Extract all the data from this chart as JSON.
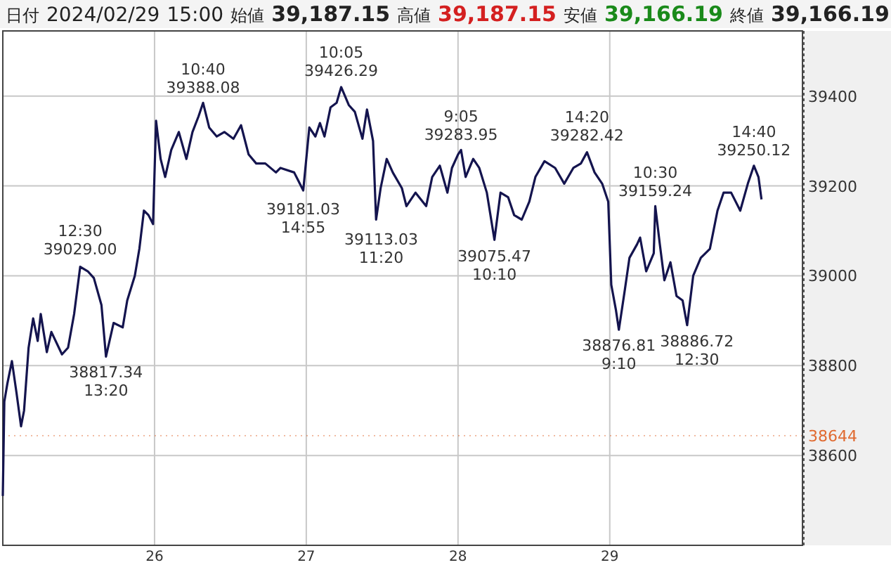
{
  "chart_data": {
    "type": "line",
    "title": "日付 2024/02/29 15:00 始値 39,187.15 高値 39,187.15 安値 39,166.19 終値 39,166.19",
    "x": [
      25.0,
      25.01,
      25.03,
      25.06,
      25.09,
      25.12,
      25.14,
      25.17,
      25.2,
      25.23,
      25.25,
      25.29,
      25.32,
      25.39,
      25.43,
      25.47,
      25.51,
      25.56,
      25.6,
      25.65,
      25.68,
      25.73,
      25.79,
      25.82,
      25.87,
      25.9,
      25.93,
      25.96,
      25.99,
      26.01,
      26.04,
      26.07,
      26.11,
      26.16,
      26.21,
      26.25,
      26.29,
      26.32,
      26.36,
      26.41,
      26.46,
      26.52,
      26.57,
      26.62,
      26.67,
      26.73,
      26.8,
      26.83,
      26.92,
      26.98,
      27.02,
      27.06,
      27.09,
      27.12,
      27.16,
      27.2,
      27.23,
      27.28,
      27.32,
      27.37,
      27.4,
      27.44,
      27.46,
      27.49,
      27.53,
      27.57,
      27.63,
      27.66,
      27.72,
      27.79,
      27.83,
      27.88,
      27.93,
      27.96,
      28.0,
      28.02,
      28.05,
      28.1,
      28.14,
      28.19,
      28.24,
      28.28,
      28.33,
      28.37,
      28.42,
      28.47,
      28.51,
      28.57,
      28.64,
      28.7,
      28.76,
      28.81,
      28.85,
      28.9,
      28.95,
      28.99,
      29.01,
      29.04,
      29.06,
      29.1,
      29.13,
      29.18,
      29.2,
      29.24,
      29.29,
      29.3,
      29.33,
      29.36,
      29.4,
      29.44,
      29.48,
      29.51,
      29.55,
      29.6,
      29.66,
      29.71,
      29.75,
      29.8,
      29.86,
      29.91,
      29.95,
      29.98,
      30.0
    ],
    "values": [
      38510,
      38720,
      38760,
      38810,
      38740,
      38665,
      38700,
      38840,
      38905,
      38855,
      38915,
      38830,
      38875,
      38825,
      38840,
      38915,
      39020,
      39010,
      38995,
      38935,
      38820,
      38895,
      38885,
      38945,
      39000,
      39060,
      39145,
      39135,
      39115,
      39345,
      39260,
      39220,
      39280,
      39320,
      39260,
      39320,
      39355,
      39385,
      39330,
      39310,
      39320,
      39305,
      39335,
      39270,
      39250,
      39250,
      39230,
      39240,
      39230,
      39190,
      39330,
      39310,
      39340,
      39310,
      39375,
      39385,
      39420,
      39380,
      39365,
      39305,
      39370,
      39300,
      39125,
      39195,
      39260,
      39230,
      39195,
      39155,
      39185,
      39155,
      39220,
      39245,
      39185,
      39240,
      39270,
      39280,
      39220,
      39260,
      39240,
      39185,
      39080,
      39185,
      39175,
      39135,
      39125,
      39165,
      39220,
      39255,
      39240,
      39205,
      39240,
      39250,
      39275,
      39230,
      39205,
      39165,
      38980,
      38925,
      38880,
      38970,
      39040,
      39070,
      39085,
      39010,
      39050,
      39155,
      39070,
      38990,
      39030,
      38955,
      38945,
      38890,
      39000,
      39040,
      39060,
      39145,
      39185,
      39185,
      39145,
      39205,
      39245,
      39220,
      39170
    ],
    "color": "#14144e",
    "xlim": [
      25,
      30.27
    ],
    "ylim": [
      38400,
      39545
    ],
    "xticks": [
      26,
      27,
      28,
      29
    ],
    "yticks": [
      38600,
      38800,
      39000,
      39200,
      39400
    ],
    "grid": true,
    "ref_lines": [
      {
        "axis": "y",
        "value": 38644,
        "label": "38644",
        "color": "#e06a30"
      }
    ],
    "annotations": [
      {
        "text": "12:30\n39029.00",
        "x": 25.51,
        "y": 39029
      },
      {
        "text": "38817.34\n13:20",
        "x": 25.68,
        "y": 38817.34
      },
      {
        "text": "10:40\n39388.08",
        "x": 26.32,
        "y": 39388.08
      },
      {
        "text": "39181.03\n14:55",
        "x": 26.98,
        "y": 39181.03
      },
      {
        "text": "10:05\n39426.29",
        "x": 27.23,
        "y": 39426.29
      },
      {
        "text": "39113.03\n11:20",
        "x": 27.46,
        "y": 39113.03
      },
      {
        "text": "9:05\n39283.95",
        "x": 28.02,
        "y": 39283.95
      },
      {
        "text": "39075.47\n10:10",
        "x": 28.24,
        "y": 39075.47
      },
      {
        "text": "14:20\n39282.42",
        "x": 28.85,
        "y": 39282.42
      },
      {
        "text": "38876.81\n9:10",
        "x": 29.06,
        "y": 38876.81
      },
      {
        "text": "10:30\n39159.24",
        "x": 29.3,
        "y": 39159.24
      },
      {
        "text": "38886.72\n12:30",
        "x": 29.51,
        "y": 38886.72
      },
      {
        "text": "14:40\n39250.12",
        "x": 29.95,
        "y": 39250.12
      }
    ]
  }
}
